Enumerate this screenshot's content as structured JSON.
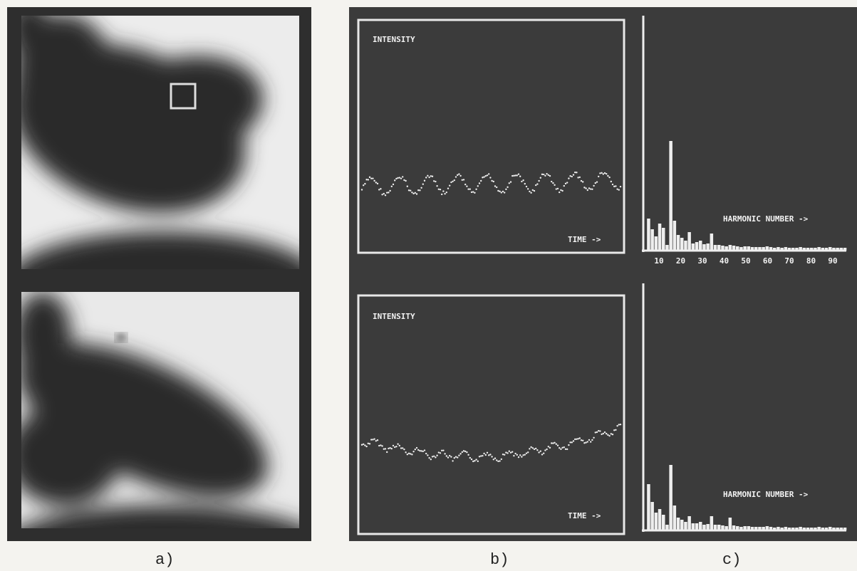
{
  "panel_a": {
    "label": "a)"
  },
  "panel_b": {
    "label": "b)",
    "plots": [
      {
        "y_label": "INTENSITY",
        "x_label": "TIME ->"
      },
      {
        "y_label": "INTENSITY",
        "x_label": "TIME ->"
      }
    ]
  },
  "panel_c": {
    "label": "c)",
    "plots": [
      {
        "x_label": "HARMONIC NUMBER ->",
        "ticks": [
          10,
          20,
          30,
          40,
          50,
          60,
          70,
          80,
          90
        ]
      },
      {
        "x_label": "HARMONIC NUMBER ->"
      }
    ]
  }
}
